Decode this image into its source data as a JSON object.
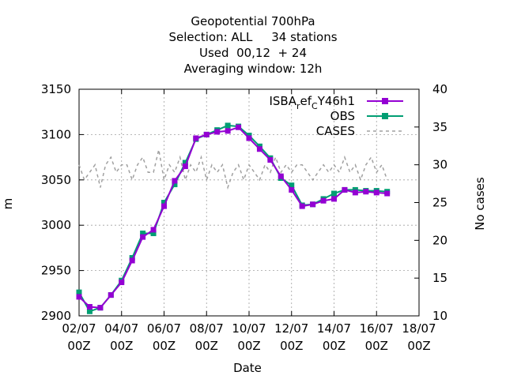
{
  "chart_data": {
    "type": "line",
    "title_lines": [
      "Geopotential 700hPa",
      "Selection: ALL     34 stations",
      "Used  00,12  + 24",
      "Averaging window: 12h"
    ],
    "xlabel": "Date",
    "ylabel": "m",
    "y2label": "No cases",
    "ylim": [
      2900,
      3150
    ],
    "y2lim": [
      10,
      40
    ],
    "yticks": [
      2900,
      2950,
      3000,
      3050,
      3100,
      3150
    ],
    "y2ticks": [
      10,
      15,
      20,
      25,
      30,
      35,
      40
    ],
    "xlim_days": [
      2,
      18
    ],
    "xticks": [
      {
        "day": 2,
        "date": "02/07",
        "hour": "00Z"
      },
      {
        "day": 4,
        "date": "04/07",
        "hour": "00Z"
      },
      {
        "day": 6,
        "date": "06/07",
        "hour": "00Z"
      },
      {
        "day": 8,
        "date": "08/07",
        "hour": "00Z"
      },
      {
        "day": 10,
        "date": "10/07",
        "hour": "00Z"
      },
      {
        "day": 12,
        "date": "12/07",
        "hour": "00Z"
      },
      {
        "day": 14,
        "date": "14/07",
        "hour": "00Z"
      },
      {
        "day": 16,
        "date": "16/07",
        "hour": "00Z"
      },
      {
        "day": 18,
        "date": "18/07",
        "hour": "00Z"
      }
    ],
    "grid": true,
    "legend_position": "top-right",
    "x_days": [
      2.0,
      2.5,
      3.0,
      3.5,
      4.0,
      4.5,
      5.0,
      5.5,
      6.0,
      6.5,
      7.0,
      7.5,
      8.0,
      8.5,
      9.0,
      9.5,
      10.0,
      10.5,
      11.0,
      11.5,
      12.0,
      12.5,
      13.0,
      13.5,
      14.0,
      14.5,
      15.0,
      15.5,
      16.0,
      16.5
    ],
    "series": [
      {
        "name": "ISBA_ref_C Y46h1",
        "legend_parts": [
          "ISBA",
          "r",
          "ef",
          "C",
          "Y46h1"
        ],
        "color": "#9400d3",
        "style": "line-points",
        "axis": "y",
        "values": [
          2921,
          2910,
          2909,
          2923,
          2937,
          2961,
          2987,
          2995,
          3021,
          3049,
          3065,
          3096,
          3100,
          3103,
          3104,
          3108,
          3096,
          3084,
          3072,
          3054,
          3039,
          3021,
          3023,
          3027,
          3029,
          3039,
          3036,
          3037,
          3036,
          3035
        ]
      },
      {
        "name": "OBS",
        "color": "#009e73",
        "style": "line-points",
        "axis": "y",
        "values": [
          2926,
          2905,
          2909,
          2923,
          2939,
          2964,
          2991,
          2991,
          3025,
          3045,
          3069,
          3095,
          3100,
          3105,
          3110,
          3109,
          3099,
          3087,
          3074,
          3052,
          3044,
          3022,
          3023,
          3029,
          3035,
          3039,
          3039,
          3038,
          3038,
          3037
        ]
      },
      {
        "name": "CASES",
        "color": "#a0a0a0",
        "style": "dashed",
        "axis": "y2",
        "x_days": [
          2.0,
          2.25,
          2.5,
          2.75,
          3.0,
          3.25,
          3.5,
          3.75,
          4.0,
          4.25,
          4.5,
          4.75,
          5.0,
          5.25,
          5.5,
          5.75,
          6.0,
          6.25,
          6.5,
          6.75,
          7.0,
          7.25,
          7.5,
          7.75,
          8.0,
          8.25,
          8.5,
          8.75,
          9.0,
          9.25,
          9.5,
          9.75,
          10.0,
          10.25,
          10.5,
          10.75,
          11.0,
          11.25,
          11.5,
          11.75,
          12.0,
          12.25,
          12.5,
          12.75,
          13.0,
          13.25,
          13.5,
          13.75,
          14.0,
          14.25,
          14.5,
          14.75,
          15.0,
          15.25,
          15.5,
          15.75,
          16.0,
          16.25,
          16.5
        ],
        "values": [
          30,
          28,
          29,
          30,
          27,
          30,
          31,
          29,
          30,
          30,
          28,
          30,
          31,
          29,
          29,
          32,
          28,
          30,
          29,
          31,
          28,
          30,
          29,
          31,
          28,
          30,
          29,
          30,
          27,
          29,
          30,
          28,
          30,
          29,
          28,
          30,
          29,
          31,
          29,
          30,
          29,
          30,
          30,
          29,
          28,
          29,
          30,
          29,
          30,
          29,
          31,
          29,
          30,
          28,
          30,
          31,
          29,
          30,
          28
        ]
      }
    ]
  }
}
